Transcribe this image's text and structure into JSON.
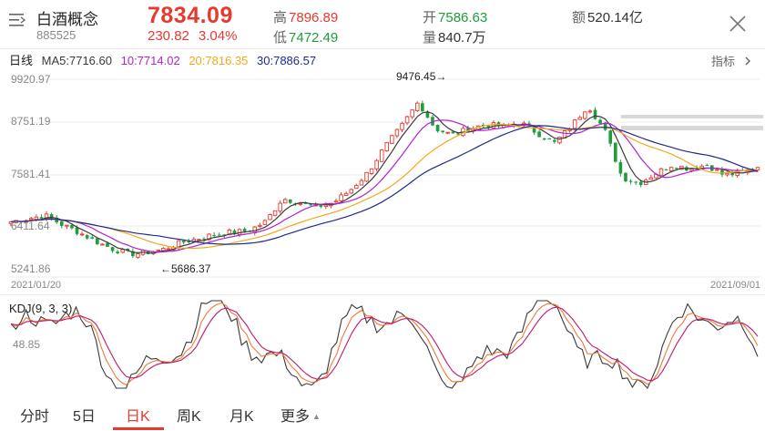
{
  "header": {
    "name": "白酒概念",
    "code": "885525",
    "price": "7834.09",
    "change": "230.82",
    "change_pct": "3.04%",
    "high_label": "高",
    "high": "7896.89",
    "low_label": "低",
    "low": "7472.49",
    "open_label": "开",
    "open": "7586.63",
    "volume_label": "量",
    "volume": "840.7万",
    "amount_label": "额",
    "amount": "520.14亿"
  },
  "ma": {
    "period": "日线",
    "ma5": "MA5:7716.60",
    "ma10": "10:7714.02",
    "ma20": "20:7816.35",
    "ma30": "30:7886.57"
  },
  "indicator_button": "指标",
  "colors": {
    "up": "#e8392e",
    "down": "#1f9c3b",
    "ma5": "#3a3a3a",
    "ma10": "#b022d6",
    "ma20": "#f2a81d",
    "ma30": "#1e2a8c"
  },
  "chart_data": [
    {
      "type": "candlestick",
      "y_ticks": [
        "9920.97",
        "8751.19",
        "7581.41",
        "6411.64",
        "5241.86"
      ],
      "ylim": [
        5241.86,
        9920.97
      ],
      "x_start": "2021/01/20",
      "x_end": "2021/09/01",
      "annotations": {
        "high_label": "9476.45→",
        "high": 9476.45,
        "low_label": "←5686.37",
        "low": 5686.37
      },
      "key_closes": [
        6550,
        6620,
        6700,
        6480,
        6300,
        6080,
        5900,
        5780,
        5820,
        5900,
        6050,
        6150,
        6250,
        6300,
        6330,
        6550,
        7100,
        7000,
        6900,
        7000,
        7300,
        7700,
        8300,
        8800,
        9380,
        8750,
        8600,
        8750,
        8850,
        8800,
        8900,
        8650,
        8400,
        8800,
        9300,
        8700,
        7600,
        7450,
        7700,
        7900,
        7800,
        7900,
        7650,
        7700,
        7834
      ]
    },
    {
      "type": "line",
      "title": "KDJ(9, 3, 3)",
      "y_tick": "48.85",
      "series": [
        "K",
        "D",
        "J"
      ]
    }
  ],
  "tabs": [
    {
      "label": "分时"
    },
    {
      "label": "5日"
    },
    {
      "label": "日K"
    },
    {
      "label": "周K"
    },
    {
      "label": "月K"
    },
    {
      "label": "更多"
    }
  ],
  "more_arrow": "▲"
}
